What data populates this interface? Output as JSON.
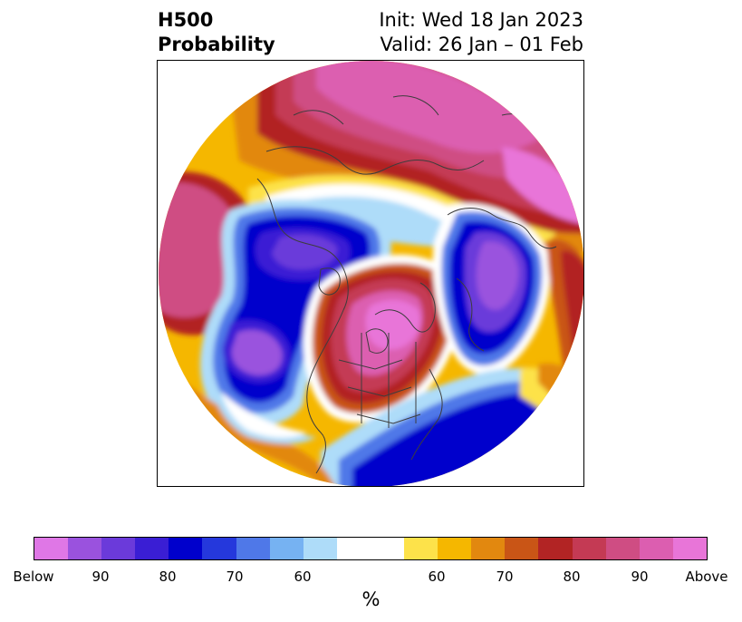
{
  "title": {
    "left_line1": "H500",
    "left_line2": "Probability",
    "right_line1": "Init: Wed 18 Jan 2023",
    "right_line2": "Valid: 26 Jan – 01 Feb"
  },
  "colorbar": {
    "colors": [
      "#df77e6",
      "#9a52de",
      "#6b3ada",
      "#3a1ed4",
      "#0000cc",
      "#2538dc",
      "#4f78e8",
      "#76b2f2",
      "#aedcf9",
      "#ffffff",
      "#fde24a",
      "#f5b700",
      "#e2880f",
      "#c95516",
      "#b22424",
      "#c43a54",
      "#cf4d83",
      "#dc5eb0",
      "#e875d8"
    ],
    "tick_labels": [
      "Below",
      "90",
      "80",
      "70",
      "60",
      "60",
      "70",
      "80",
      "90",
      "Above"
    ],
    "unit_label": "%"
  },
  "map": {
    "projection": "north-polar-stereographic",
    "features": [
      "continent outlines",
      "country borders",
      "US state borders",
      "Canadian province borders"
    ]
  }
}
